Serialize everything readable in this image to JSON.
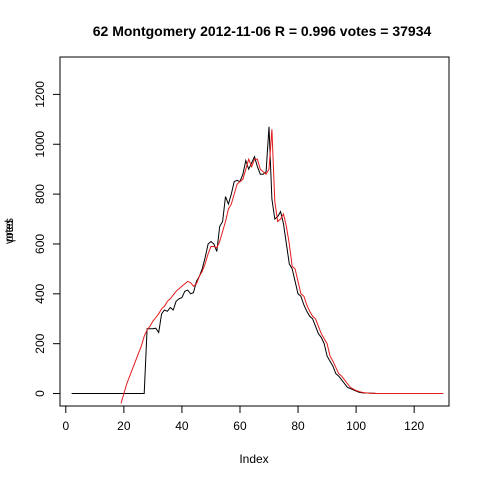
{
  "chart_data": {
    "type": "line",
    "title": "62 Montgomery 2012-11-06 R = 0.996 votes = 37934",
    "xlabel": "Index",
    "ylabel_parts": [
      "votes",
      "pred"
    ],
    "xlim": [
      -2,
      132
    ],
    "ylim": [
      -50,
      1350
    ],
    "x_ticks": [
      0,
      20,
      40,
      60,
      80,
      100,
      120
    ],
    "y_ticks": [
      0,
      200,
      400,
      600,
      800,
      1000,
      1200
    ],
    "grid": false,
    "series": [
      {
        "color": "#000000",
        "x": [
          2,
          3,
          4,
          5,
          6,
          7,
          8,
          9,
          10,
          11,
          12,
          13,
          14,
          15,
          16,
          17,
          18,
          19,
          20,
          21,
          22,
          23,
          24,
          25,
          26,
          27,
          28,
          29,
          30,
          31,
          32,
          33,
          34,
          35,
          36,
          37,
          38,
          39,
          40,
          41,
          42,
          43,
          44,
          45,
          46,
          47,
          48,
          49,
          50,
          51,
          52,
          53,
          54,
          55,
          56,
          57,
          58,
          59,
          60,
          61,
          62,
          63,
          64,
          65,
          66,
          67,
          68,
          69,
          70,
          71,
          72,
          73,
          74,
          75,
          76,
          77,
          78,
          79,
          80,
          81,
          82,
          83,
          84,
          85,
          86,
          87,
          88,
          89,
          90,
          91,
          92,
          93,
          94,
          95,
          96,
          97,
          98,
          99,
          100,
          101,
          102,
          103,
          104,
          105,
          106,
          107,
          108,
          109,
          110,
          111,
          112,
          113,
          114,
          115,
          116,
          117,
          118,
          119,
          120,
          121,
          122,
          123,
          124,
          125,
          126,
          127,
          128,
          129,
          130
        ],
        "y": [
          0,
          0,
          0,
          0,
          0,
          0,
          0,
          0,
          0,
          0,
          0,
          0,
          0,
          0,
          0,
          0,
          0,
          0,
          0,
          0,
          0,
          0,
          0,
          0,
          0,
          0,
          260,
          260,
          260,
          262,
          245,
          320,
          335,
          330,
          345,
          335,
          370,
          380,
          385,
          410,
          415,
          400,
          405,
          450,
          470,
          500,
          545,
          600,
          610,
          600,
          570,
          670,
          690,
          790,
          760,
          800,
          850,
          855,
          850,
          880,
          935,
          900,
          925,
          950,
          910,
          880,
          880,
          890,
          1070,
          780,
          700,
          710,
          730,
          680,
          600,
          520,
          500,
          450,
          400,
          390,
          355,
          330,
          310,
          300,
          270,
          240,
          225,
          200,
          150,
          130,
          110,
          80,
          70,
          55,
          40,
          25,
          20,
          15,
          10,
          5,
          3,
          2,
          2,
          1,
          1,
          0,
          0,
          0,
          0,
          0,
          0,
          0,
          0,
          0,
          0,
          0,
          0,
          0,
          0,
          0,
          0,
          0,
          0,
          0,
          0,
          0,
          0,
          0,
          0
        ]
      },
      {
        "color": "#e41a1c",
        "x": [
          19,
          20,
          21,
          22,
          23,
          24,
          25,
          26,
          27,
          28,
          29,
          30,
          31,
          32,
          33,
          34,
          35,
          36,
          37,
          38,
          39,
          40,
          41,
          42,
          43,
          44,
          45,
          46,
          47,
          48,
          49,
          50,
          51,
          52,
          53,
          54,
          55,
          56,
          57,
          58,
          59,
          60,
          61,
          62,
          63,
          64,
          65,
          66,
          67,
          68,
          69,
          70,
          71,
          72,
          73,
          74,
          75,
          76,
          77,
          78,
          79,
          80,
          81,
          82,
          83,
          84,
          85,
          86,
          87,
          88,
          89,
          90,
          91,
          92,
          93,
          94,
          95,
          96,
          97,
          98,
          99,
          100,
          101,
          102,
          103,
          104,
          105,
          106,
          107,
          108,
          109,
          110,
          111,
          112,
          113,
          114,
          115,
          116,
          117,
          118,
          119,
          120,
          121,
          122,
          123,
          124,
          125,
          126,
          127,
          128,
          129,
          130
        ],
        "y": [
          -40,
          0,
          40,
          70,
          100,
          130,
          160,
          190,
          230,
          255,
          270,
          290,
          305,
          320,
          340,
          350,
          370,
          380,
          395,
          410,
          420,
          430,
          440,
          450,
          445,
          430,
          440,
          470,
          490,
          520,
          560,
          590,
          590,
          585,
          610,
          650,
          690,
          740,
          760,
          800,
          840,
          850,
          860,
          900,
          940,
          910,
          940,
          940,
          900,
          890,
          880,
          900,
          1060,
          770,
          690,
          700,
          720,
          670,
          600,
          510,
          500,
          450,
          400,
          390,
          355,
          330,
          310,
          300,
          270,
          240,
          220,
          200,
          150,
          130,
          105,
          80,
          70,
          55,
          40,
          25,
          18,
          12,
          8,
          5,
          3,
          2,
          1,
          1,
          0,
          0,
          0,
          0,
          0,
          0,
          0,
          0,
          0,
          0,
          0,
          0,
          0,
          0,
          0,
          0,
          0,
          0,
          0,
          0,
          0,
          0,
          0,
          0
        ]
      }
    ]
  }
}
